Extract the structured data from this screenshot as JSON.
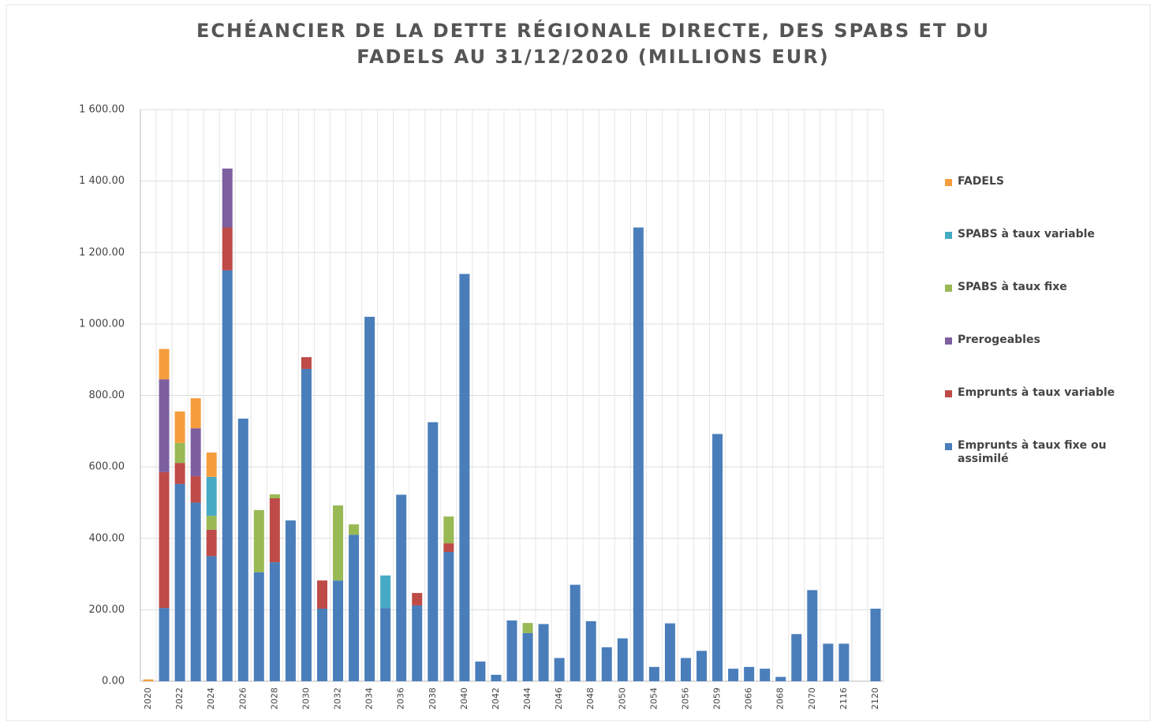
{
  "chart_data": {
    "type": "stacked_bar",
    "title": [
      "ECHÉANCIER DE LA DETTE RÉGIONALE DIRECTE, DES SPABS ET DU",
      "FADELS AU 31/12/2020 (MILLIONS EUR)"
    ],
    "categories": [
      "2020",
      null,
      "2022",
      null,
      "2024",
      null,
      "2026",
      null,
      "2028",
      null,
      "2030",
      null,
      "2032",
      null,
      "2034",
      null,
      "2036",
      null,
      "2038",
      null,
      "2040",
      null,
      "2042",
      null,
      "2044",
      null,
      "2046",
      null,
      "2048",
      null,
      "2050",
      null,
      "2054",
      null,
      "2056",
      null,
      "2059",
      null,
      "2066",
      null,
      "2068",
      null,
      "2070",
      null,
      "2116",
      null,
      "2120"
    ],
    "series": [
      {
        "name": "Emprunts à taux fixe ou assimilé",
        "color": "#4a7ebb",
        "values": [
          0,
          205,
          552,
          500,
          350,
          1150,
          735,
          305,
          333,
          450,
          874,
          203,
          282,
          410,
          1020,
          205,
          522,
          212,
          725,
          362,
          1140,
          55,
          18,
          170,
          135,
          160,
          65,
          270,
          168,
          95,
          120,
          1270,
          40,
          162,
          65,
          85,
          692,
          35,
          40,
          35,
          12,
          132,
          255,
          105,
          105,
          0,
          203
        ]
      },
      {
        "name": "Emprunts à taux variable",
        "color": "#be4b48",
        "values": [
          0,
          380,
          59,
          74,
          74,
          120,
          0,
          0,
          179,
          0,
          33,
          79,
          0,
          0,
          0,
          0,
          0,
          35,
          0,
          24,
          0,
          0,
          0,
          0,
          0,
          0,
          0,
          0,
          0,
          0,
          0,
          0,
          0,
          0,
          0,
          0,
          0,
          0,
          0,
          0,
          0,
          0,
          0,
          0,
          0,
          0,
          0
        ]
      },
      {
        "name": "Prerogeables",
        "color": "#7d5fa0",
        "values": [
          0,
          260,
          0,
          134,
          0,
          165,
          0,
          0,
          0,
          0,
          0,
          0,
          0,
          0,
          0,
          0,
          0,
          0,
          0,
          0,
          0,
          0,
          0,
          0,
          0,
          0,
          0,
          0,
          0,
          0,
          0,
          0,
          0,
          0,
          0,
          0,
          0,
          0,
          0,
          0,
          0,
          0,
          0,
          0,
          0,
          0,
          0
        ]
      },
      {
        "name": "SPABS à taux fixe",
        "color": "#98b954",
        "values": [
          0,
          0,
          56,
          0,
          39,
          0,
          0,
          174,
          11,
          0,
          0,
          0,
          210,
          29,
          0,
          0,
          0,
          0,
          0,
          75,
          0,
          0,
          0,
          0,
          28,
          0,
          0,
          0,
          0,
          0,
          0,
          0,
          0,
          0,
          0,
          0,
          0,
          0,
          0,
          0,
          0,
          0,
          0,
          0,
          0,
          0,
          0
        ]
      },
      {
        "name": "SPABS à taux variable",
        "color": "#46aac5",
        "values": [
          0,
          0,
          0,
          0,
          109,
          0,
          0,
          0,
          0,
          0,
          0,
          0,
          0,
          0,
          0,
          91,
          0,
          0,
          0,
          0,
          0,
          0,
          0,
          0,
          0,
          0,
          0,
          0,
          0,
          0,
          0,
          0,
          0,
          0,
          0,
          0,
          0,
          0,
          0,
          0,
          0,
          0,
          0,
          0,
          0,
          0,
          0
        ]
      },
      {
        "name": "FADELS",
        "color": "#f59d3d",
        "values": [
          5,
          85,
          88,
          84,
          68,
          0,
          0,
          0,
          0,
          0,
          0,
          0,
          0,
          0,
          0,
          0,
          0,
          0,
          0,
          0,
          0,
          0,
          0,
          0,
          0,
          0,
          0,
          0,
          0,
          0,
          0,
          0,
          0,
          0,
          0,
          0,
          0,
          0,
          0,
          0,
          0,
          0,
          0,
          0,
          0,
          0,
          0
        ]
      }
    ],
    "ylim": [
      0,
      1600
    ],
    "yticks": [
      {
        "value": 0,
        "label": "0.00"
      },
      {
        "value": 200,
        "label": "200.00"
      },
      {
        "value": 400,
        "label": "400.00"
      },
      {
        "value": 600,
        "label": "600.00"
      },
      {
        "value": 800,
        "label": "800.00"
      },
      {
        "value": 1000,
        "label": "1 000.00"
      },
      {
        "value": 1200,
        "label": "1 200.00"
      },
      {
        "value": 1400,
        "label": "1 400.00"
      },
      {
        "value": 1600,
        "label": "1 600.00"
      }
    ],
    "grid": true,
    "legend": "right"
  }
}
